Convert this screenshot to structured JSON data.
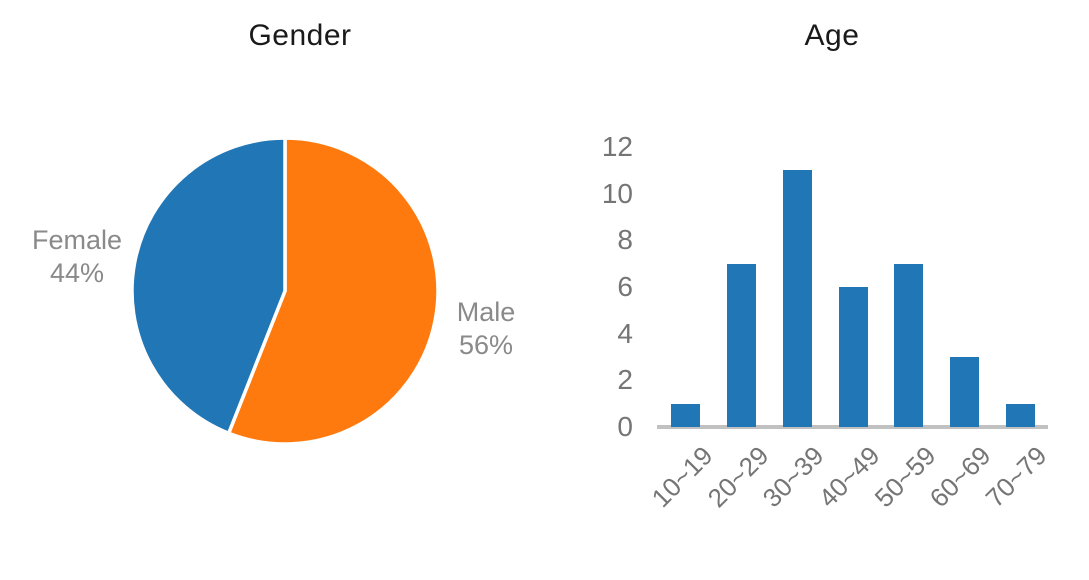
{
  "page": {
    "background": "#ffffff"
  },
  "chart_data": [
    {
      "type": "pie",
      "title": "Gender",
      "title_color": "#1a1a1a",
      "slices": [
        {
          "label": "Male",
          "value": 56,
          "color": "#ff7a0e",
          "label_side": "right"
        },
        {
          "label": "Female",
          "value": 44,
          "color": "#2176b5",
          "label_side": "left"
        }
      ],
      "value_unit": "%",
      "start_angle_deg": 0,
      "direction": "clockwise",
      "label_color": "#8a8a8a",
      "divider_color": "#ffffff",
      "legend_position": "outside-labels"
    },
    {
      "type": "bar",
      "title": "Age",
      "title_color": "#1a1a1a",
      "categories": [
        "10~19",
        "20~29",
        "30~39",
        "40~49",
        "50~59",
        "60~69",
        "70~79"
      ],
      "values": [
        1,
        7,
        11,
        6,
        7,
        3,
        1
      ],
      "bar_color": "#2176b5",
      "xlabel": "",
      "ylabel": "",
      "ylim": [
        0,
        12
      ],
      "yticks": [
        0,
        2,
        4,
        6,
        8,
        10,
        12
      ],
      "tick_color": "#757575",
      "axis_line_color": "#c1c1c1",
      "grid": false,
      "legend_position": "none",
      "xtick_rotation_deg": 45
    }
  ]
}
